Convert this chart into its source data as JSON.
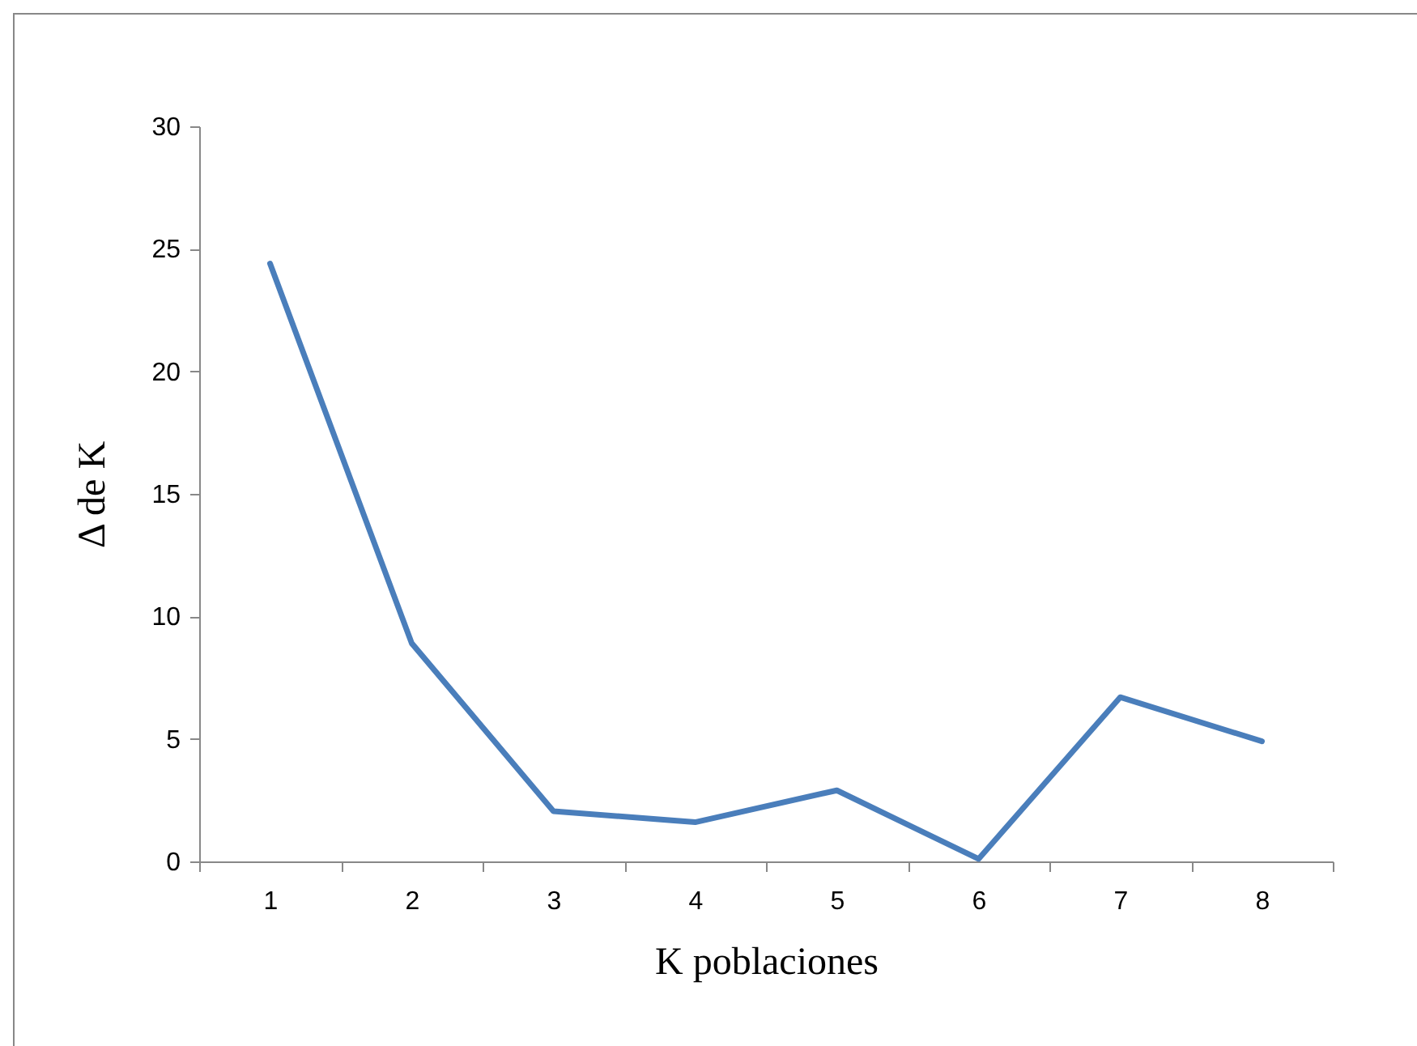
{
  "chart_data": {
    "type": "line",
    "xlabel": "K poblaciones",
    "ylabel": "Δ de K",
    "categories": [
      "1",
      "2",
      "3",
      "4",
      "5",
      "6",
      "7",
      "8"
    ],
    "series": [
      {
        "color": "#4a7ebb",
        "values": [
          24.4,
          8.9,
          2.05,
          1.6,
          2.9,
          0.1,
          6.7,
          4.9
        ]
      }
    ],
    "ylim": [
      0,
      30
    ],
    "yticks": [
      0,
      5,
      10,
      15,
      20,
      25,
      30
    ],
    "grid": false,
    "legend": false,
    "marker": "none",
    "line_style": "solid"
  }
}
